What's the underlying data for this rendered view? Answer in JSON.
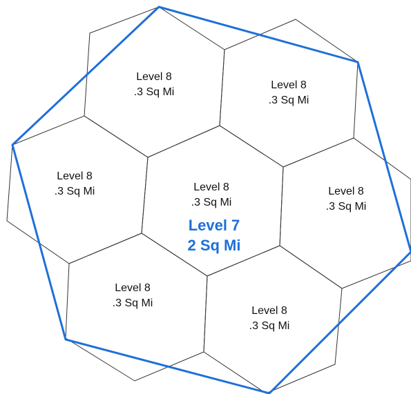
{
  "colors": {
    "parent_outline": "#1e6fd9",
    "child_outline": "#333333",
    "parent_text": "#1e6fd9",
    "child_text": "#111111"
  },
  "parent": {
    "level": "Level 7",
    "area": "2 Sq Mi"
  },
  "children": [
    {
      "id": "top-left",
      "level": "Level 8",
      "area": ".3 Sq Mi"
    },
    {
      "id": "top-right",
      "level": "Level 8",
      "area": ".3 Sq Mi"
    },
    {
      "id": "left",
      "level": "Level 8",
      "area": ".3 Sq Mi"
    },
    {
      "id": "center",
      "level": "Level 8",
      "area": ".3 Sq Mi"
    },
    {
      "id": "right",
      "level": "Level 8",
      "area": ".3 Sq Mi"
    },
    {
      "id": "bottom-left",
      "level": "Level 8",
      "area": ".3 Sq Mi"
    },
    {
      "id": "bottom-right",
      "level": "Level 8",
      "area": ".3 Sq Mi"
    }
  ]
}
